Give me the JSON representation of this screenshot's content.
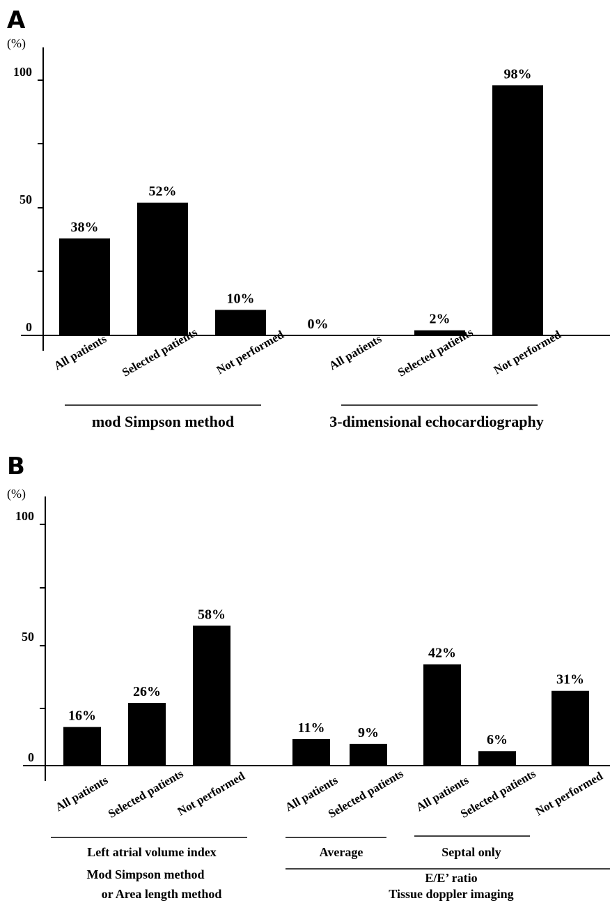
{
  "chart_data": [
    {
      "panel": "A",
      "type": "bar",
      "unit_label": "(%)",
      "ylim": [
        0,
        100
      ],
      "yticks": [
        "0",
        "50",
        "100"
      ],
      "categories": [
        "All patients",
        "Selected patients",
        "Not performed",
        "All patients",
        "Selected patients",
        "Not performed"
      ],
      "values": [
        38,
        52,
        10,
        0,
        2,
        98
      ],
      "data_labels": [
        "38%",
        "52%",
        "10%",
        "0%",
        "2%",
        "98%"
      ],
      "groups": [
        {
          "label": "mod Simpson method",
          "categories": [
            0,
            1,
            2
          ]
        },
        {
          "label": "3-dimensional echocardiography",
          "categories": [
            3,
            4,
            5
          ]
        }
      ]
    },
    {
      "panel": "B",
      "type": "bar",
      "unit_label": "(%)",
      "ylim": [
        0,
        100
      ],
      "yticks": [
        "0",
        "50",
        "100"
      ],
      "categories": [
        "All patients",
        "Selected patients",
        "Not performed",
        "All patients",
        "Selected patients",
        "All patients",
        "Selected patients",
        "Not performed"
      ],
      "values": [
        16,
        26,
        58,
        11,
        9,
        42,
        6,
        31
      ],
      "data_labels": [
        "16%",
        "26%",
        "58%",
        "11%",
        "9%",
        "42%",
        "6%",
        "31%"
      ],
      "groups": [
        {
          "label": "Left atrial volume index",
          "sublabel": [
            "Mod Simpson method",
            "or Area length method"
          ],
          "categories": [
            0,
            1,
            2
          ]
        },
        {
          "label": "Average",
          "categories": [
            3,
            4
          ]
        },
        {
          "label": "Septal only",
          "categories": [
            5,
            6
          ]
        },
        {
          "label": "E/E’ ratio",
          "sublabel": [
            "Tissue doppler imaging"
          ],
          "categories": [
            3,
            4,
            5,
            6,
            7
          ]
        }
      ]
    }
  ]
}
